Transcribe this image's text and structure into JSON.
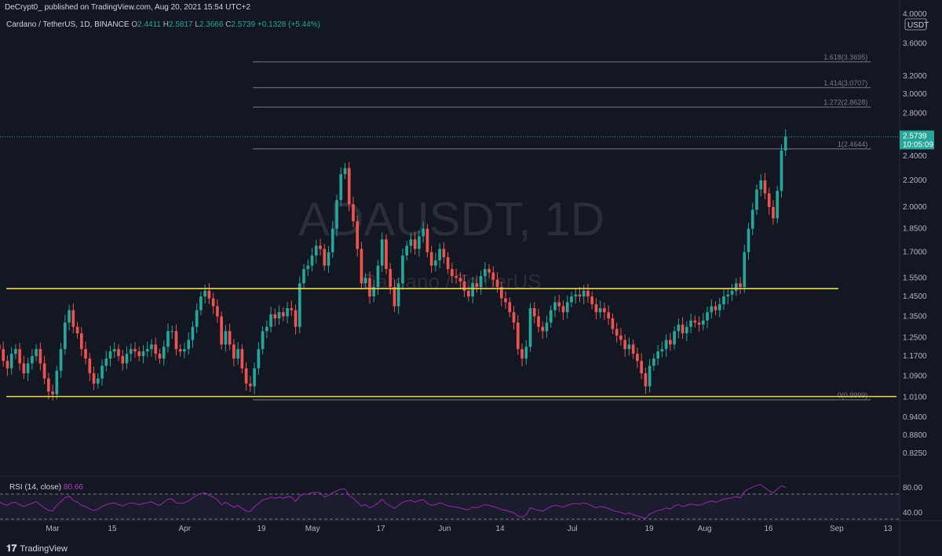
{
  "header": {
    "published": "DeCrypt0_ published on TradingView.com, Aug 20, 2021 15:54 UTC+2",
    "symbol": "Cardano / TetherUS, 1D, BINANCE",
    "o_label": "O",
    "o": "2.4411",
    "h_label": "H",
    "h": "2.5817",
    "l_label": "L",
    "l": "2.3666",
    "c_label": "C",
    "c": "2.5739",
    "change": "+0.1328 (+5.44%)"
  },
  "watermark": {
    "main": "ADAUSDT, 1D",
    "sub": "Cardano / TetherUS"
  },
  "currency_label": "USDT",
  "price_badge": {
    "price": "2.5739",
    "countdown": "10:05:09",
    "color": "#26a69a"
  },
  "footer": {
    "logo_text": "TradingView"
  },
  "colors": {
    "up": "#26a69a",
    "down": "#ef5350",
    "support": "#f0d64a",
    "rsi": "#9c27b0",
    "bg": "#131722",
    "axis_text": "#b2b5be"
  },
  "chart_data": [
    {
      "type": "candlestick",
      "title": "Cardano / TetherUS, 1D, BINANCE",
      "y_scale": "log",
      "ylim": [
        0.78,
        4.0
      ],
      "y_ticks": [
        "4.0000",
        "3.6000",
        "3.2000",
        "3.0000",
        "2.8000",
        "2.6000",
        "2.4000",
        "2.2000",
        "2.0000",
        "1.8500",
        "1.7000",
        "1.5500",
        "1.4500",
        "1.3500",
        "1.2500",
        "1.1700",
        "1.0900",
        "1.0100",
        "0.9400",
        "0.8800",
        "0.8250"
      ],
      "x_ticks": [
        "Mar",
        "15",
        "Apr",
        "19",
        "May",
        "17",
        "Jun",
        "14",
        "Jul",
        "19",
        "Aug",
        "16",
        "Sep",
        "13"
      ],
      "x_tick_days": [
        0,
        14,
        31,
        49,
        61,
        77,
        92,
        105,
        122,
        140,
        153,
        168,
        184,
        196
      ],
      "first_candle_day": -28,
      "last_candle_day": 172,
      "candles_close": [
        0.86,
        0.9,
        0.93,
        1.02,
        1.13,
        1.18,
        1.15,
        1.1,
        1.05,
        1.03,
        1.12,
        1.15,
        1.22,
        1.3,
        1.32,
        1.22,
        1.2,
        1.15,
        1.12,
        1.18,
        1.2,
        1.14,
        1.1,
        1.14,
        1.17,
        1.2,
        1.14,
        1.08,
        1.03,
        1.02,
        1.11,
        1.2,
        1.32,
        1.38,
        1.3,
        1.27,
        1.2,
        1.16,
        1.1,
        1.06,
        1.08,
        1.13,
        1.16,
        1.19,
        1.2,
        1.17,
        1.14,
        1.18,
        1.2,
        1.19,
        1.17,
        1.19,
        1.2,
        1.22,
        1.18,
        1.16,
        1.21,
        1.28,
        1.28,
        1.2,
        1.19,
        1.2,
        1.24,
        1.3,
        1.38,
        1.45,
        1.48,
        1.44,
        1.4,
        1.35,
        1.22,
        1.28,
        1.22,
        1.16,
        1.2,
        1.12,
        1.06,
        1.05,
        1.12,
        1.2,
        1.28,
        1.3,
        1.36,
        1.34,
        1.37,
        1.35,
        1.39,
        1.38,
        1.3,
        1.52,
        1.6,
        1.62,
        1.68,
        1.74,
        1.72,
        1.62,
        1.7,
        1.85,
        2.05,
        2.25,
        2.3,
        2.02,
        1.9,
        1.72,
        1.52,
        1.55,
        1.45,
        1.5,
        1.62,
        1.78,
        1.6,
        1.5,
        1.4,
        1.52,
        1.68,
        1.74,
        1.78,
        1.72,
        1.8,
        1.85,
        1.7,
        1.62,
        1.65,
        1.72,
        1.67,
        1.6,
        1.56,
        1.55,
        1.53,
        1.48,
        1.45,
        1.52,
        1.5,
        1.56,
        1.6,
        1.58,
        1.54,
        1.5,
        1.44,
        1.42,
        1.37,
        1.32,
        1.2,
        1.16,
        1.21,
        1.39,
        1.35,
        1.3,
        1.28,
        1.32,
        1.38,
        1.42,
        1.4,
        1.37,
        1.42,
        1.45,
        1.46,
        1.45,
        1.48,
        1.45,
        1.41,
        1.37,
        1.39,
        1.37,
        1.34,
        1.29,
        1.26,
        1.24,
        1.2,
        1.22,
        1.18,
        1.15,
        1.1,
        1.05,
        1.13,
        1.16,
        1.19,
        1.2,
        1.24,
        1.22,
        1.28,
        1.31,
        1.27,
        1.3,
        1.33,
        1.32,
        1.31,
        1.33,
        1.37,
        1.4,
        1.38,
        1.41,
        1.45,
        1.46,
        1.48,
        1.52,
        1.5,
        1.7,
        1.85,
        1.98,
        2.13,
        2.2,
        2.1,
        2.0,
        1.92,
        2.12,
        2.45,
        2.5739
      ],
      "support_lines": [
        1.492,
        1.012
      ],
      "fib_levels": [
        {
          "label": "1.618(3.3695)",
          "value": 3.3695
        },
        {
          "label": "1.414(3.0707)",
          "value": 3.0707
        },
        {
          "label": "1.272(2.8628)",
          "value": 2.8628
        },
        {
          "label": "1(2.4644)",
          "value": 2.4644
        },
        {
          "label": "0(0.9999)",
          "value": 0.9999
        }
      ],
      "fib_start_day": 47,
      "fib_end_day": 192,
      "last_price_line": 2.5739
    },
    {
      "type": "line",
      "title": "RSI (14, close)",
      "series": [
        {
          "name": "RSI (14, close)",
          "last_value": "80.66"
        }
      ],
      "ylim": [
        30,
        95
      ],
      "y_ticks": [
        "80.00",
        "40.00"
      ],
      "bands": [
        70,
        30
      ],
      "values": [
        40,
        48,
        52,
        55,
        60,
        64,
        60,
        56,
        52,
        50,
        56,
        58,
        62,
        66,
        67,
        60,
        58,
        54,
        52,
        56,
        57,
        53,
        50,
        53,
        55,
        58,
        53,
        48,
        44,
        43,
        52,
        58,
        64,
        67,
        60,
        57,
        52,
        50,
        46,
        44,
        46,
        50,
        53,
        55,
        56,
        53,
        51,
        54,
        56,
        55,
        53,
        55,
        56,
        58,
        54,
        52,
        57,
        62,
        62,
        56,
        55,
        56,
        59,
        64,
        68,
        71,
        72,
        68,
        65,
        61,
        53,
        57,
        53,
        49,
        52,
        47,
        43,
        42,
        50,
        55,
        61,
        62,
        65,
        63,
        65,
        63,
        66,
        65,
        58,
        67,
        70,
        70,
        72,
        73,
        72,
        65,
        68,
        72,
        75,
        78,
        78,
        68,
        63,
        57,
        51,
        53,
        48,
        51,
        56,
        62,
        55,
        51,
        47,
        52,
        57,
        59,
        60,
        57,
        60,
        61,
        55,
        52,
        53,
        56,
        54,
        51,
        50,
        49,
        48,
        46,
        45,
        49,
        48,
        51,
        53,
        52,
        50,
        48,
        45,
        44,
        42,
        40,
        35,
        33,
        37,
        48,
        46,
        44,
        43,
        46,
        50,
        52,
        51,
        49,
        52,
        54,
        55,
        54,
        56,
        54,
        51,
        48,
        50,
        49,
        47,
        44,
        42,
        41,
        38,
        40,
        37,
        35,
        33,
        31,
        38,
        41,
        44,
        45,
        48,
        46,
        51,
        53,
        50,
        52,
        54,
        53,
        52,
        54,
        57,
        59,
        57,
        59,
        62,
        63,
        64,
        66,
        64,
        74,
        78,
        81,
        84,
        85,
        80,
        75,
        72,
        78,
        83,
        80.66
      ]
    }
  ]
}
